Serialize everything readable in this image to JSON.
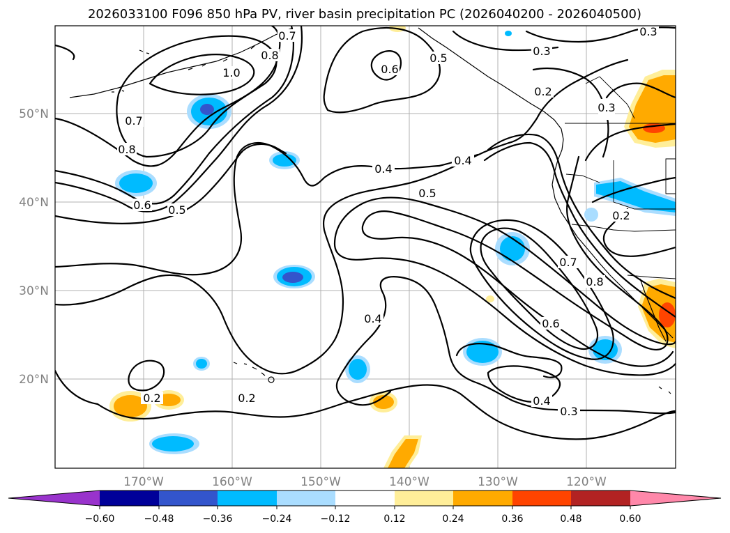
{
  "title": "2026033100 F096 850 hPa PV, river basin precipitation PC (2026040200 - 2026040500)",
  "colors": {
    "ticks": "#808080",
    "contour": "#000000",
    "bins": [
      "#9933cc",
      "#000099",
      "#3355cc",
      "#00bbff",
      "#aaddff",
      "#ffffff",
      "#ffee99",
      "#ffaa00",
      "#ff4400",
      "#b22222",
      "#ff88aa"
    ]
  },
  "axes": {
    "lon_labels": [
      "170°W",
      "160°W",
      "150°W",
      "140°W",
      "130°W",
      "120°W"
    ],
    "lat_labels": [
      "50°N",
      "40°N",
      "30°N",
      "20°N"
    ]
  },
  "colorbar": {
    "ticks": [
      "−0.60",
      "−0.48",
      "−0.36",
      "−0.24",
      "−0.12",
      "0.12",
      "0.24",
      "0.36",
      "0.48",
      "0.60"
    ]
  },
  "contour_labels": [
    {
      "text": "1.0"
    },
    {
      "text": "0.8"
    },
    {
      "text": "0.7"
    },
    {
      "text": "0.8"
    },
    {
      "text": "0.7"
    },
    {
      "text": "0.6"
    },
    {
      "text": "0.5"
    },
    {
      "text": "0.6"
    },
    {
      "text": "0.5"
    },
    {
      "text": "0.4"
    },
    {
      "text": "0.4"
    },
    {
      "text": "0.5"
    },
    {
      "text": "0.3"
    },
    {
      "text": "0.3"
    },
    {
      "text": "0.2"
    },
    {
      "text": "0.3"
    },
    {
      "text": "0.2"
    },
    {
      "text": "0.7"
    },
    {
      "text": "0.8"
    },
    {
      "text": "0.6"
    },
    {
      "text": "0.4"
    },
    {
      "text": "0.2"
    },
    {
      "text": "0.2"
    },
    {
      "text": "0.4"
    },
    {
      "text": "0.3"
    }
  ]
}
